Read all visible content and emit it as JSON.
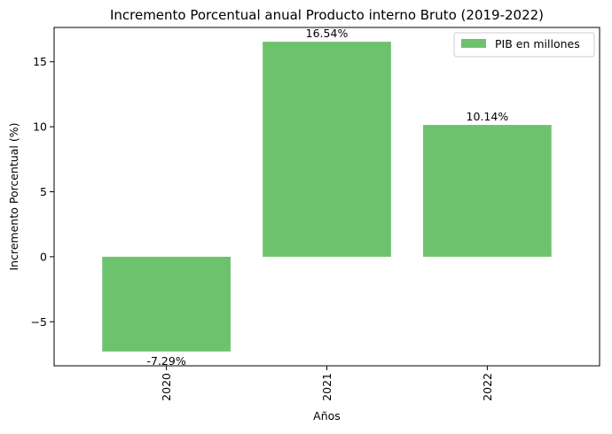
{
  "chart_data": {
    "type": "bar",
    "title": "Incremento Porcentual anual Producto interno Bruto (2019-2022)",
    "xlabel": "Años",
    "ylabel": "Incremento Porcentual (%)",
    "categories": [
      "2020",
      "2021",
      "2022"
    ],
    "series": [
      {
        "name": "PIB en millones",
        "values": [
          -7.29,
          16.54,
          10.14
        ],
        "color": "#6dc36d"
      }
    ],
    "data_labels": [
      "-7.29%",
      "16.54%",
      "10.14%"
    ],
    "ylim": [
      -8.39,
      17.64
    ],
    "yticks": [
      -5,
      0,
      5,
      10,
      15
    ],
    "ytick_labels": [
      "−5",
      "0",
      "5",
      "10",
      "15"
    ],
    "xtick_rotation": 90,
    "grid": false,
    "legend_position": "top-right"
  }
}
